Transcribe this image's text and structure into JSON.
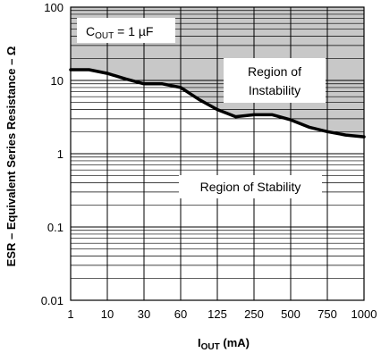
{
  "chart_data": {
    "type": "line",
    "y_scale": "log",
    "ylim": [
      0.01,
      100
    ],
    "grid": true,
    "ylabel": "ESR – Equivalent Series Resistance – Ω",
    "xlabel": {
      "main": "I",
      "sub": "OUT",
      "suffix": " (mA)"
    },
    "x_tick_labels": [
      "1",
      "10",
      "30",
      "60",
      "125",
      "250",
      "500",
      "750",
      "1000"
    ],
    "y_tick_labels": [
      {
        "label": "100",
        "value": 100
      },
      {
        "label": "10",
        "value": 10
      },
      {
        "label": "1",
        "value": 1
      },
      {
        "label": "0.1",
        "value": 0.1
      },
      {
        "label": "0.01",
        "value": 0.01
      }
    ],
    "series": [
      {
        "x_category_index": [
          0,
          0.5,
          1,
          1.5,
          2,
          2.5,
          3,
          3.5,
          4,
          4.5,
          5,
          5.5,
          6,
          6.5,
          7,
          7.5,
          8
        ],
        "y": [
          14,
          14,
          12.5,
          10.5,
          9,
          9,
          8,
          5.5,
          4,
          3.2,
          3.4,
          3.4,
          2.9,
          2.3,
          2,
          1.8,
          1.7
        ]
      }
    ],
    "fill_color": "#c8c8c8",
    "line_color": "#000000",
    "annotations": {
      "capacitor": {
        "main": "C",
        "sub": "OUT",
        "suffix": " = 1 µF"
      },
      "instability": [
        "Region of",
        "Instability"
      ],
      "stability": "Region of Stability"
    }
  }
}
